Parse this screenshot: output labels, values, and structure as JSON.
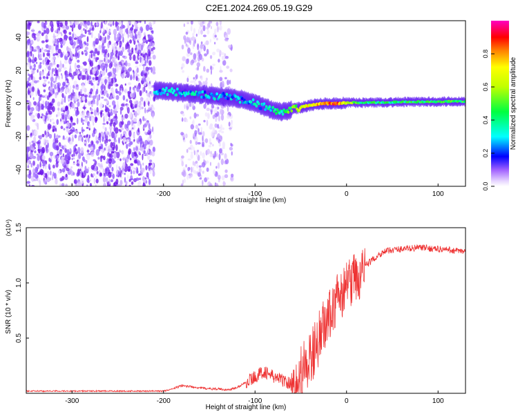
{
  "title": "C2E1.2024.269.05.19.G29",
  "spectrogram": {
    "type": "heatmap",
    "xlabel": "Height of straight line (km)",
    "ylabel": "Frequency (Hz)",
    "xlim": [
      -350,
      130
    ],
    "ylim": [
      -50,
      50
    ],
    "xticks": [
      -300,
      -200,
      -100,
      0,
      100
    ],
    "yticks": [
      -40,
      -20,
      0,
      20,
      40
    ],
    "colorbar": {
      "label": "Normalized spectral amplitude",
      "range": [
        0,
        1
      ],
      "ticks": [
        "0.0",
        "0.2",
        "0.4",
        "0.6",
        "0.8"
      ],
      "colors": [
        "#ffffff",
        "#d8b8ff",
        "#7b00ff",
        "#0000ff",
        "#00ffff",
        "#00ff00",
        "#ffff00",
        "#ff8000",
        "#ff0000",
        "#ff00c0"
      ]
    },
    "noise_bands": [
      {
        "from": -350,
        "to": -210,
        "level": 0.08
      },
      {
        "from": -180,
        "to": -125,
        "level": 0.04
      }
    ],
    "ridge": [
      {
        "x": -210,
        "y": 8,
        "amp": 0.28
      },
      {
        "x": -190,
        "y": 7,
        "amp": 0.3
      },
      {
        "x": -170,
        "y": 6,
        "amp": 0.3
      },
      {
        "x": -150,
        "y": 5,
        "amp": 0.26
      },
      {
        "x": -130,
        "y": 4,
        "amp": 0.26
      },
      {
        "x": -110,
        "y": 2,
        "amp": 0.28
      },
      {
        "x": -95,
        "y": -1,
        "amp": 0.3
      },
      {
        "x": -80,
        "y": -4,
        "amp": 0.32
      },
      {
        "x": -70,
        "y": -5,
        "amp": 0.4
      },
      {
        "x": -55,
        "y": -3,
        "amp": 0.55
      },
      {
        "x": -40,
        "y": -1,
        "amp": 0.7
      },
      {
        "x": -25,
        "y": 0,
        "amp": 0.8
      },
      {
        "x": -10,
        "y": 0,
        "amp": 0.85
      },
      {
        "x": 0,
        "y": 0.5,
        "amp": 0.6
      },
      {
        "x": 20,
        "y": 0.5,
        "amp": 0.4
      },
      {
        "x": 50,
        "y": 0.8,
        "amp": 0.4
      },
      {
        "x": 80,
        "y": 1,
        "amp": 0.42
      },
      {
        "x": 110,
        "y": 1.2,
        "amp": 0.45
      },
      {
        "x": 130,
        "y": 1.3,
        "amp": 0.45
      }
    ]
  },
  "snr_chart": {
    "type": "line",
    "xlabel": "Height of straight line (km)",
    "ylabel": "SNR (10 * v/v)",
    "scale_label": "(x10⁴)",
    "xlim": [
      -350,
      130
    ],
    "ylim": [
      0,
      1.5
    ],
    "xticks": [
      -300,
      -200,
      -100,
      0,
      100
    ],
    "yticks": [
      "0.5",
      "1.0",
      "1.5"
    ],
    "series_color": "#ee3333",
    "x": [
      -350,
      -250,
      -200,
      -190,
      -180,
      -170,
      -160,
      -150,
      -140,
      -130,
      -120,
      -110,
      -100,
      -90,
      -80,
      -70,
      -60,
      -50,
      -40,
      -30,
      -20,
      -10,
      0,
      10,
      20,
      30,
      40,
      50,
      80,
      110,
      130
    ],
    "y": [
      0.02,
      0.02,
      0.02,
      0.04,
      0.07,
      0.06,
      0.05,
      0.04,
      0.04,
      0.03,
      0.05,
      0.1,
      0.15,
      0.2,
      0.15,
      0.12,
      0.08,
      0.1,
      0.3,
      0.5,
      0.7,
      0.85,
      0.95,
      1.05,
      1.15,
      1.22,
      1.28,
      1.3,
      1.32,
      1.3,
      1.28
    ]
  }
}
